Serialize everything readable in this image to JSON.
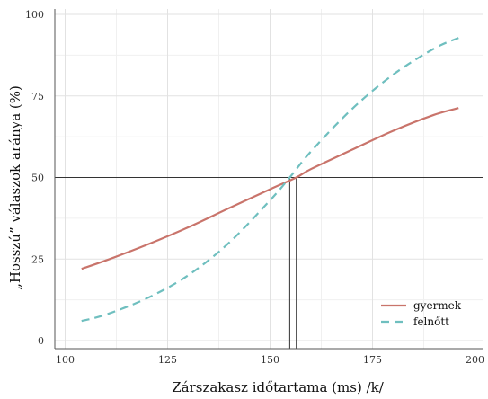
{
  "chart_data": {
    "type": "line",
    "xlabel": "Zárszakasz időtartama (ms) /k/",
    "ylabel": "„Hosszú” válaszok aránya (%)",
    "xlim": [
      100,
      200
    ],
    "ylim": [
      0,
      100
    ],
    "x_ticks": [
      100,
      125,
      150,
      175,
      200
    ],
    "y_ticks": [
      0,
      25,
      50,
      75,
      100
    ],
    "grid": true,
    "legend_position": "bottom-right",
    "reference_lines": {
      "horizontal_y": 50,
      "vertical_x": [
        154.8,
        156.4
      ]
    },
    "series": [
      {
        "name": "gyermek",
        "color": "#c9746b",
        "dash": "solid",
        "x": [
          104,
          110,
          120,
          130,
          140,
          150,
          156.4,
          160,
          170,
          180,
          190,
          196
        ],
        "y": [
          22,
          24.6,
          29.4,
          34.7,
          40.6,
          46.4,
          50,
          52.6,
          58.5,
          64.3,
          69.2,
          71.3
        ]
      },
      {
        "name": "felnőtt",
        "color": "#6fbfbf",
        "dash": "dashed",
        "x": [
          104,
          110,
          120,
          130,
          140,
          150,
          154.8,
          160,
          170,
          180,
          190,
          196
        ],
        "y": [
          6,
          8,
          13,
          20,
          30,
          43,
          50,
          58,
          71,
          81.5,
          89.5,
          92.8
        ]
      }
    ]
  }
}
